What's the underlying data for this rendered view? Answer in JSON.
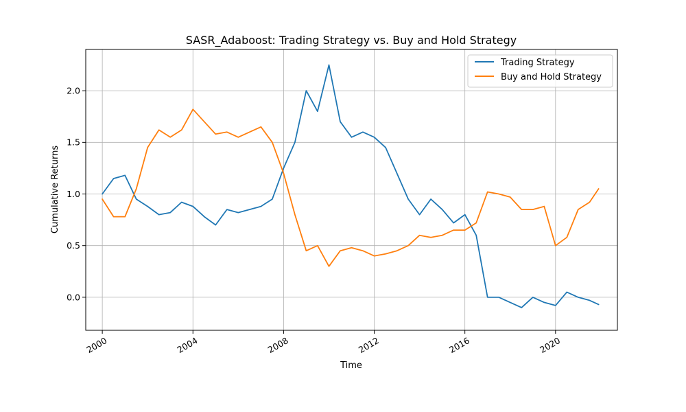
{
  "chart_data": {
    "type": "line",
    "title": "SASR_Adaboost: Trading Strategy vs. Buy and Hold Strategy",
    "xlabel": "Time",
    "ylabel": "Cumulative Returns",
    "xlim": [
      1999.27,
      2022.73
    ],
    "ylim": [
      -0.32,
      2.4
    ],
    "x_ticks": [
      2000,
      2004,
      2008,
      2012,
      2016,
      2020
    ],
    "x_tick_labels": [
      "2000",
      "2004",
      "2008",
      "2012",
      "2016",
      "2020"
    ],
    "y_ticks": [
      0.0,
      0.5,
      1.0,
      1.5,
      2.0
    ],
    "y_tick_labels": [
      "0.0",
      "0.5",
      "1.0",
      "1.5",
      "2.0"
    ],
    "grid": true,
    "legend_position": "top-right",
    "series": [
      {
        "name": "Trading Strategy",
        "color": "#1f77b4",
        "x": [
          2000.0,
          2000.5,
          2001.0,
          2001.5,
          2002.0,
          2002.5,
          2003.0,
          2003.5,
          2004.0,
          2004.5,
          2005.0,
          2005.5,
          2006.0,
          2006.5,
          2007.0,
          2007.5,
          2008.0,
          2008.5,
          2009.0,
          2009.5,
          2010.0,
          2010.5,
          2011.0,
          2011.5,
          2012.0,
          2012.5,
          2013.0,
          2013.5,
          2014.0,
          2014.5,
          2015.0,
          2015.5,
          2016.0,
          2016.5,
          2017.0,
          2017.5,
          2018.0,
          2018.5,
          2019.0,
          2019.5,
          2020.0,
          2020.5,
          2021.0,
          2021.5,
          2021.9
        ],
        "y": [
          1.0,
          1.15,
          1.18,
          0.95,
          0.88,
          0.8,
          0.82,
          0.92,
          0.88,
          0.78,
          0.7,
          0.85,
          0.82,
          0.85,
          0.88,
          0.95,
          1.25,
          1.5,
          2.0,
          1.8,
          2.25,
          1.7,
          1.55,
          1.6,
          1.55,
          1.45,
          1.2,
          0.95,
          0.8,
          0.95,
          0.85,
          0.72,
          0.8,
          0.6,
          0.0,
          0.0,
          -0.05,
          -0.1,
          0.0,
          -0.05,
          -0.08,
          0.05,
          0.0,
          -0.03,
          -0.07
        ]
      },
      {
        "name": "Buy and Hold Strategy",
        "color": "#ff7f0e",
        "x": [
          2000.0,
          2000.5,
          2001.0,
          2001.5,
          2002.0,
          2002.5,
          2003.0,
          2003.5,
          2004.0,
          2004.5,
          2005.0,
          2005.5,
          2006.0,
          2006.5,
          2007.0,
          2007.5,
          2008.0,
          2008.5,
          2009.0,
          2009.5,
          2010.0,
          2010.5,
          2011.0,
          2011.5,
          2012.0,
          2012.5,
          2013.0,
          2013.5,
          2014.0,
          2014.5,
          2015.0,
          2015.5,
          2016.0,
          2016.5,
          2017.0,
          2017.5,
          2018.0,
          2018.5,
          2019.0,
          2019.5,
          2020.0,
          2020.5,
          2021.0,
          2021.5,
          2021.9
        ],
        "y": [
          0.95,
          0.78,
          0.78,
          1.05,
          1.45,
          1.62,
          1.55,
          1.62,
          1.82,
          1.7,
          1.58,
          1.6,
          1.55,
          1.6,
          1.65,
          1.5,
          1.2,
          0.8,
          0.45,
          0.5,
          0.3,
          0.45,
          0.48,
          0.45,
          0.4,
          0.42,
          0.45,
          0.5,
          0.6,
          0.58,
          0.6,
          0.65,
          0.65,
          0.72,
          1.02,
          1.0,
          0.97,
          0.85,
          0.85,
          0.88,
          0.5,
          0.58,
          0.85,
          0.92,
          1.05
        ]
      }
    ]
  }
}
